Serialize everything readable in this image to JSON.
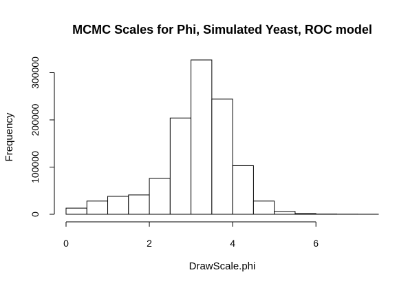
{
  "chart_data": {
    "type": "bar",
    "title": "MCMC Scales for Phi, Simulated Yeast, ROC model",
    "xlabel": "DrawScale.phi",
    "ylabel": "Frequency",
    "bin_edges": [
      0,
      0.5,
      1,
      1.5,
      2,
      2.5,
      3,
      3.5,
      4,
      4.5,
      5,
      5.5,
      6,
      6.5,
      7,
      7.5
    ],
    "values": [
      13000,
      28000,
      38000,
      41000,
      76000,
      204000,
      327000,
      244000,
      103000,
      28000,
      6000,
      1500,
      500,
      200,
      100
    ],
    "xlim": [
      0,
      7.5
    ],
    "ylim": [
      0,
      327000
    ],
    "x_ticks": [
      0,
      2,
      4,
      6
    ],
    "x_tick_labels": [
      "0",
      "2",
      "4",
      "6"
    ],
    "y_ticks": [
      0,
      100000,
      200000,
      300000
    ],
    "y_tick_labels": [
      "0",
      "100000",
      "200000",
      "300000"
    ],
    "grid": false,
    "bar_fill": "#ffffff",
    "bar_stroke": "#000000"
  }
}
